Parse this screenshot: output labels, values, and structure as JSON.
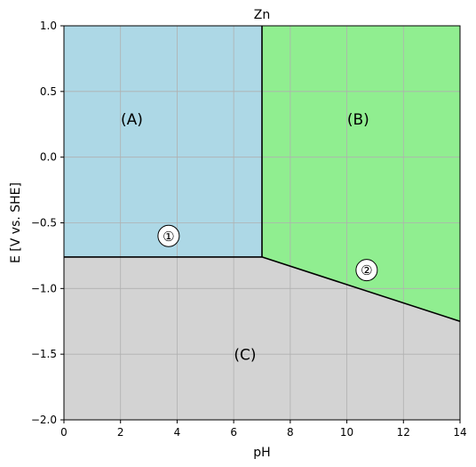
{
  "chart_data": {
    "type": "area",
    "title": "Zn",
    "xlabel": "pH",
    "ylabel": "E [V vs. SHE]",
    "xlim": [
      0,
      14
    ],
    "ylim": [
      -2.0,
      1.0
    ],
    "grid": true,
    "xticks": [
      0,
      2,
      4,
      6,
      8,
      10,
      12,
      14
    ],
    "xtick_labels": [
      "0",
      "2",
      "4",
      "6",
      "8",
      "10",
      "12",
      "14"
    ],
    "yticks": [
      -2.0,
      -1.5,
      -1.0,
      -0.5,
      0.0,
      0.5,
      1.0
    ],
    "ytick_labels": [
      "−2.0",
      "−1.5",
      "−1.0",
      "−0.5",
      "0.0",
      "0.5",
      "1.0"
    ],
    "regions": [
      {
        "label": "(A)",
        "color": "#add8e6",
        "polygon": [
          [
            0,
            -0.76
          ],
          [
            7,
            -0.76
          ],
          [
            7,
            1.0
          ],
          [
            0,
            1.0
          ]
        ],
        "label_pos": [
          2.4,
          0.24
        ]
      },
      {
        "label": "(B)",
        "color": "#90ee90",
        "polygon": [
          [
            7,
            -0.76
          ],
          [
            14,
            -1.25
          ],
          [
            14,
            1.0
          ],
          [
            7,
            1.0
          ]
        ],
        "label_pos": [
          10.4,
          0.24
        ]
      },
      {
        "label": "(C)",
        "color": "#d3d3d3",
        "polygon": [
          [
            0,
            -2.0
          ],
          [
            14,
            -2.0
          ],
          [
            14,
            -1.25
          ],
          [
            7,
            -0.76
          ],
          [
            0,
            -0.76
          ]
        ],
        "label_pos": [
          6.4,
          -1.55
        ]
      }
    ],
    "boundaries": [
      {
        "points": [
          [
            0,
            -0.76
          ],
          [
            7,
            -0.76
          ]
        ]
      },
      {
        "points": [
          [
            7,
            -0.76
          ],
          [
            7,
            1.0
          ]
        ]
      },
      {
        "points": [
          [
            7,
            -0.76
          ],
          [
            14,
            -1.25
          ]
        ]
      }
    ],
    "markers": [
      {
        "label": "①",
        "x": 3.7,
        "y": -0.6
      },
      {
        "label": "②",
        "x": 10.7,
        "y": -0.86
      }
    ]
  }
}
